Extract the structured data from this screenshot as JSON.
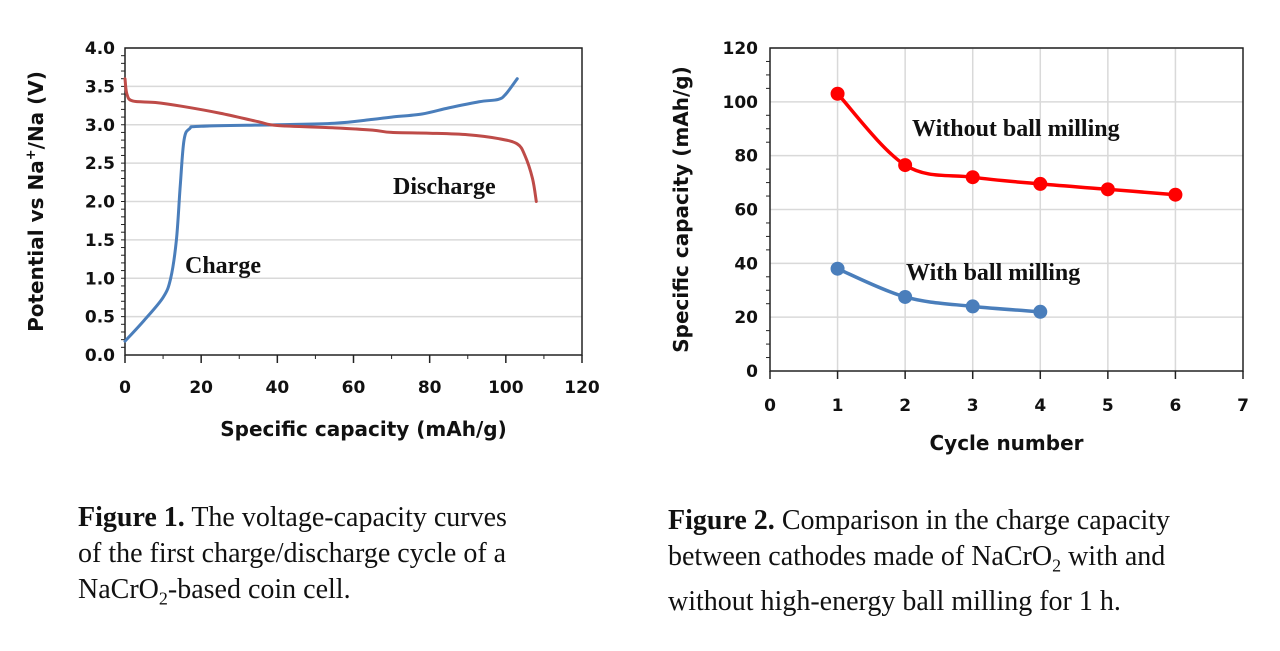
{
  "chart_data": [
    {
      "type": "line",
      "xlabel": "Specific capacity (mAh/g)",
      "ylabel_parts": [
        "Potential vs Na",
        "+",
        "/Na (V)"
      ],
      "xlim": [
        0,
        120
      ],
      "ylim": [
        0,
        4.0
      ],
      "xticks": [
        "0",
        "20",
        "40",
        "60",
        "80",
        "100",
        "120"
      ],
      "yticks": [
        "0.0",
        "0.5",
        "1.0",
        "1.5",
        "2.0",
        "2.5",
        "3.0",
        "3.5",
        "4.0"
      ],
      "grid": "horizontal",
      "series": [
        {
          "name": "Charge",
          "color": "#4a7ebb",
          "x": [
            0,
            5,
            10,
            12,
            13.5,
            14.5,
            15.5,
            17,
            20,
            40,
            55,
            65,
            70,
            78,
            85,
            93,
            98,
            100,
            103
          ],
          "y": [
            0.18,
            0.45,
            0.75,
            1.0,
            1.5,
            2.2,
            2.8,
            2.95,
            2.98,
            3.0,
            3.02,
            3.07,
            3.1,
            3.14,
            3.22,
            3.3,
            3.33,
            3.4,
            3.6
          ]
        },
        {
          "name": "Discharge",
          "color": "#be4b48",
          "x": [
            0,
            0.5,
            2,
            8,
            15,
            25,
            35,
            40,
            55,
            65,
            70,
            80,
            90,
            98,
            103,
            105,
            107,
            108
          ],
          "y": [
            3.6,
            3.4,
            3.31,
            3.29,
            3.24,
            3.15,
            3.04,
            2.99,
            2.96,
            2.93,
            2.9,
            2.89,
            2.87,
            2.82,
            2.75,
            2.6,
            2.3,
            2.0
          ]
        }
      ]
    },
    {
      "type": "line",
      "xlabel": "Cycle number",
      "ylabel": "Specific capacity (mAh/g)",
      "xlim": [
        0,
        7
      ],
      "ylim": [
        0,
        120
      ],
      "xticks": [
        "0",
        "1",
        "2",
        "3",
        "4",
        "5",
        "6",
        "7"
      ],
      "yticks": [
        "0",
        "20",
        "40",
        "60",
        "80",
        "100",
        "120"
      ],
      "grid": "both",
      "series": [
        {
          "name": "Without ball milling",
          "color": "#ff0000",
          "x": [
            1,
            2,
            3,
            4,
            5,
            6
          ],
          "y": [
            103,
            76.5,
            72,
            69.5,
            67.5,
            65.5
          ]
        },
        {
          "name": "With ball milling",
          "color": "#4a7ebb",
          "x": [
            1,
            2,
            3,
            4
          ],
          "y": [
            38,
            27.5,
            24,
            22
          ]
        }
      ]
    }
  ],
  "captions": {
    "fig1": {
      "label": "Figure 1.",
      "lines": [
        "The voltage-capacity curves",
        "of the first charge/discharge cycle of a",
        "NaCrO",
        "2",
        "-based coin cell."
      ]
    },
    "fig2": {
      "label": "Figure 2.",
      "lines": [
        "Comparison in the charge capacity",
        "between cathodes made of NaCrO",
        "2",
        " with and",
        "without high-energy ball milling for 1 h."
      ]
    }
  }
}
